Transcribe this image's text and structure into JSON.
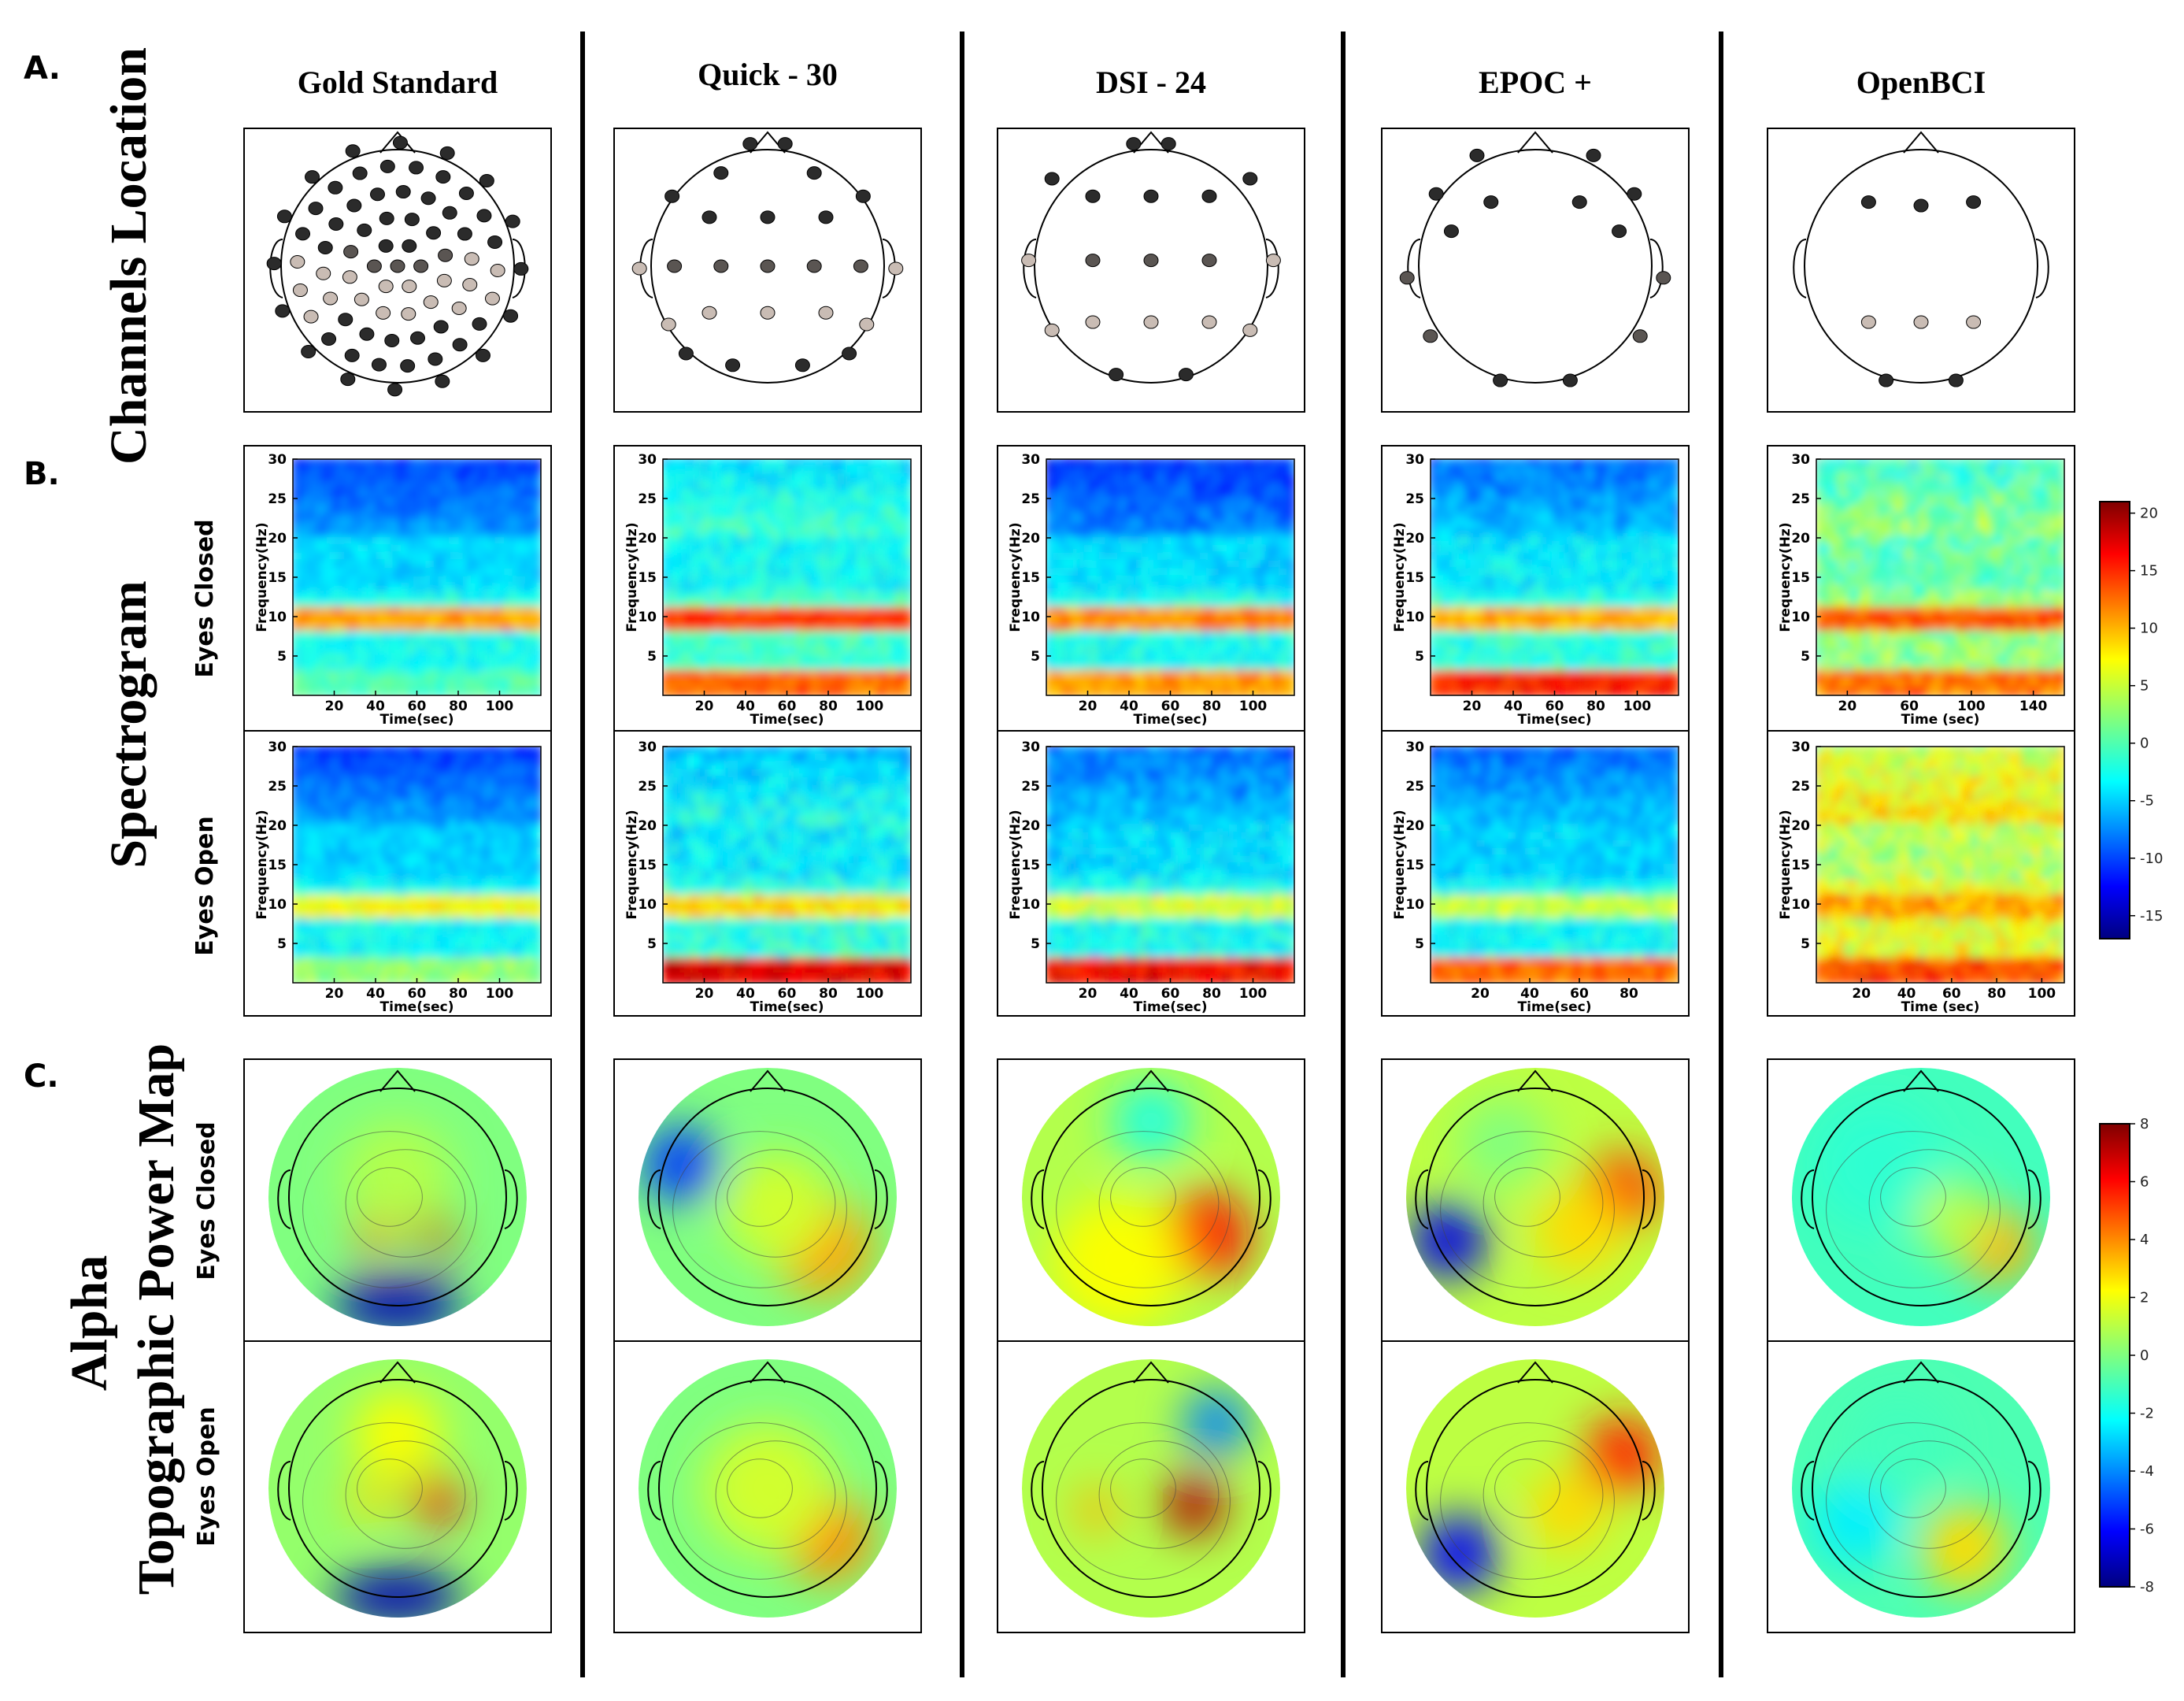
{
  "sections": {
    "a": "A.",
    "b": "B.",
    "c": "C."
  },
  "row_labels": {
    "channels": "Channels Location",
    "spectrogram": "Spectrogram",
    "alpha_line1": "Alpha",
    "alpha_line2": "Topographic Power Map",
    "eyes_closed": "Eyes Closed",
    "eyes_open": "Eyes Open"
  },
  "devices": [
    {
      "name": "Gold Standard",
      "time_label": "Time(sec)",
      "closed_xticks": [
        20,
        40,
        60,
        80,
        100
      ],
      "open_xticks": [
        20,
        40,
        60,
        80,
        100
      ]
    },
    {
      "name": "Quick - 30",
      "time_label": "Time(sec)",
      "closed_xticks": [
        20,
        40,
        60,
        80,
        100
      ],
      "open_xticks": [
        20,
        40,
        60,
        80,
        100
      ]
    },
    {
      "name": "DSI - 24",
      "time_label": "Time(sec)",
      "closed_xticks": [
        20,
        40,
        60,
        80,
        100
      ],
      "open_xticks": [
        20,
        40,
        60,
        80,
        100
      ]
    },
    {
      "name": "EPOC +",
      "time_label": "Time(sec)",
      "closed_xticks": [
        20,
        40,
        60,
        80,
        100
      ],
      "open_xticks": [
        20,
        40,
        60,
        80
      ]
    },
    {
      "name": "OpenBCI",
      "time_label": "Time (sec)",
      "closed_xticks": [
        20,
        60,
        100,
        140
      ],
      "open_xticks": [
        20,
        40,
        60,
        80,
        100
      ]
    }
  ],
  "freq_label": "Frequency(Hz)",
  "freq_ticks": [
    5,
    10,
    15,
    20,
    25,
    30
  ],
  "spectrogram_colorbar": {
    "min": -17,
    "max": 21,
    "ticks": [
      20,
      15,
      10,
      5,
      0,
      -5,
      -10,
      -15
    ]
  },
  "topomap_colorbar": {
    "min": -8,
    "max": 8,
    "ticks": [
      8,
      6,
      4,
      2,
      0,
      -2,
      -4,
      -6,
      -8
    ]
  },
  "colors": {
    "dark_electrode": "#2b2b2b",
    "mid_electrode": "#5a5552",
    "light_electrode": "#c9bcb4"
  }
}
